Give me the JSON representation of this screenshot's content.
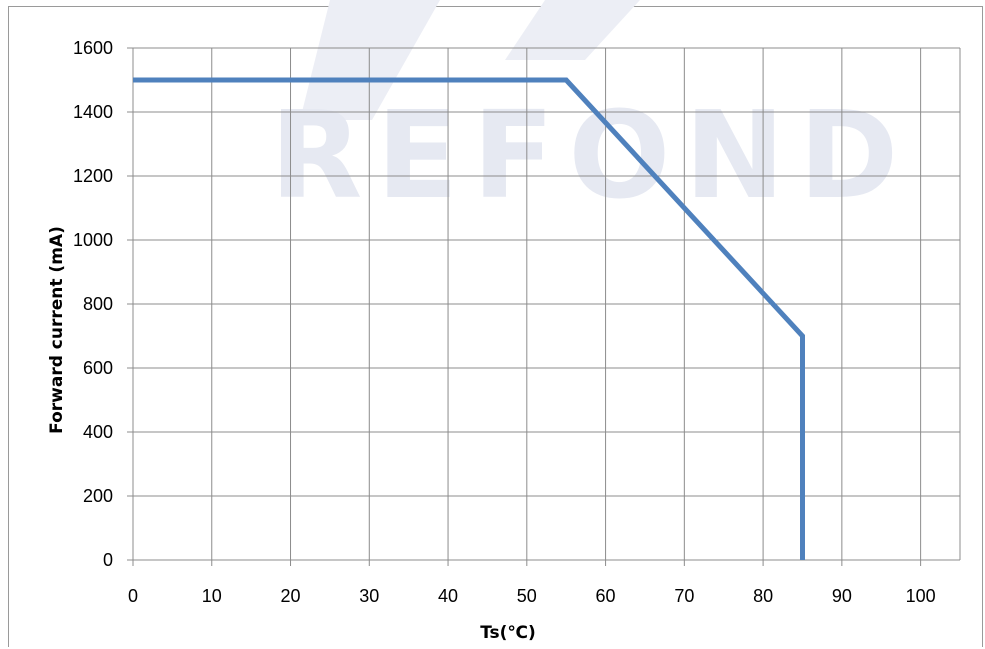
{
  "watermark_text": "REFOND",
  "colors": {
    "line": "#4f81bd",
    "grid": "#8c8c8c",
    "watermark": "#e6e9f2"
  },
  "chart_data": {
    "type": "line",
    "xlabel": "Ts(℃)",
    "ylabel": "Forward current  (mA)",
    "xlim": [
      0,
      105
    ],
    "ylim": [
      0,
      1600
    ],
    "x_ticks": [
      0,
      10,
      20,
      30,
      40,
      50,
      60,
      70,
      80,
      90,
      100
    ],
    "y_ticks": [
      0,
      200,
      400,
      600,
      800,
      1000,
      1200,
      1400,
      1600
    ],
    "grid": true,
    "legend": "none",
    "series": [
      {
        "x": [
          0,
          55,
          85,
          85
        ],
        "y": [
          1500,
          1500,
          700,
          0
        ]
      }
    ]
  }
}
